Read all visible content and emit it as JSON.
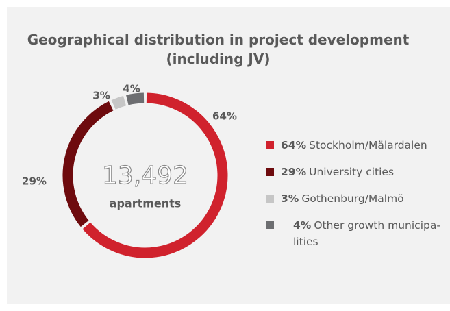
{
  "chart_data": {
    "type": "donut",
    "title": "Geographical distribution in project development (including JV)",
    "center_value": "13,492",
    "center_label": "apartments",
    "categories": [
      "Stockholm/Mälardalen",
      "University cities",
      "Gothenburg/Malmö",
      "Other growth municipa-lities"
    ],
    "values": [
      64,
      29,
      3,
      4
    ],
    "value_labels": [
      "64%",
      "29%",
      "3%",
      "4%"
    ],
    "colors": [
      "#d0222d",
      "#6e0b0e",
      "#c6c6c6",
      "#6d6e71"
    ]
  }
}
